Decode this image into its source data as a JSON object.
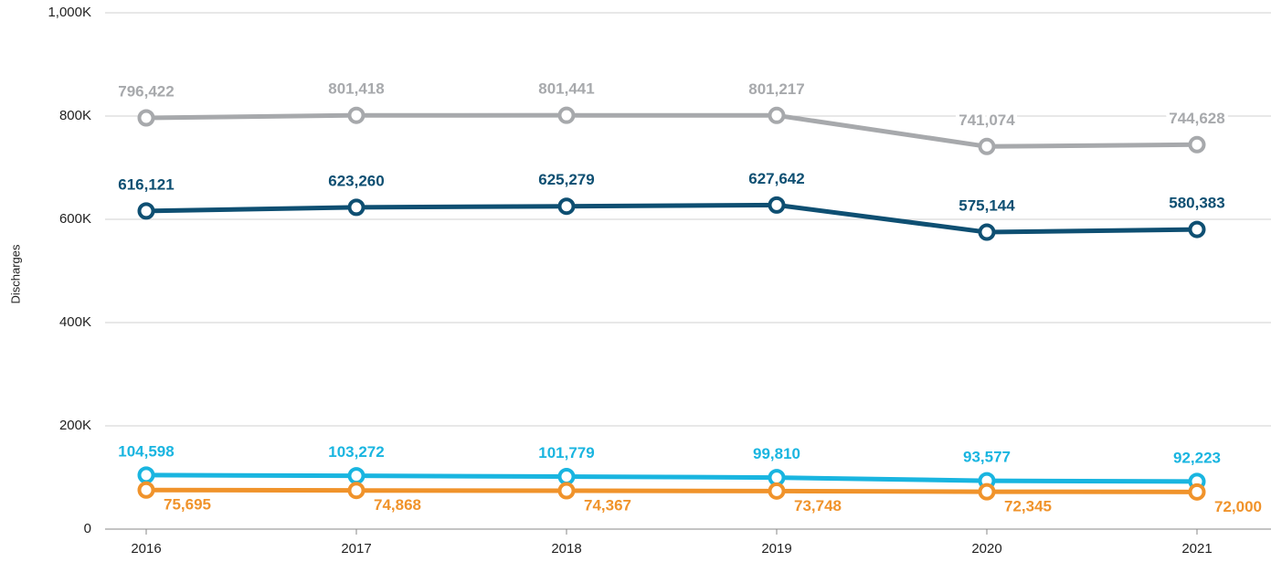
{
  "chart_data": {
    "type": "line",
    "y_label": "Discharges",
    "categories": [
      "2016",
      "2017",
      "2018",
      "2019",
      "2020",
      "2021"
    ],
    "series": [
      {
        "color": "#a7a9ac",
        "values": [
          796422,
          801418,
          801441,
          801217,
          741074,
          744628
        ],
        "value_labels": [
          "796,422",
          "801,418",
          "801,441",
          "801,217",
          "741,074",
          "744,628"
        ]
      },
      {
        "color": "#0e4f72",
        "values": [
          616121,
          623260,
          625279,
          627642,
          575144,
          580383
        ],
        "value_labels": [
          "616,121",
          "623,260",
          "625,279",
          "627,642",
          "575,144",
          "580,383"
        ]
      },
      {
        "color": "#19b5e0",
        "values": [
          104598,
          103272,
          101779,
          99810,
          93577,
          92223
        ],
        "value_labels": [
          "104,598",
          "103,272",
          "101,779",
          "99,810",
          "93,577",
          "92,223"
        ]
      },
      {
        "color": "#f0932b",
        "values": [
          75695,
          74868,
          74367,
          73748,
          72345,
          72000
        ],
        "value_labels": [
          "75,695",
          "74,868",
          "74,367",
          "73,748",
          "72,345",
          "72,000"
        ]
      }
    ],
    "ylim": [
      0,
      1000000
    ],
    "yticks": [
      0,
      {
        "value": 200000,
        "label": "200K"
      },
      {
        "value": 400000,
        "label": "400K"
      },
      {
        "value": 600000,
        "label": "600K"
      },
      {
        "value": 800000,
        "label": "800K"
      },
      {
        "value": 1000000,
        "label": "1,000K"
      }
    ],
    "grid": true
  }
}
